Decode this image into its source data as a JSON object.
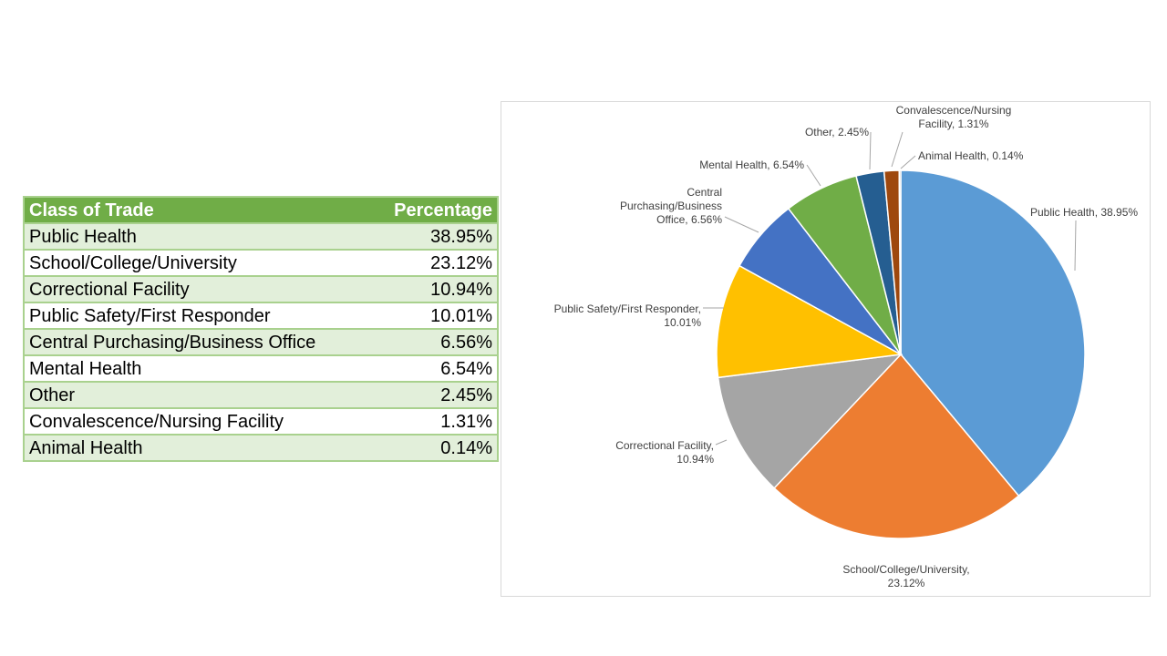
{
  "table": {
    "headers": [
      "Class of Trade",
      "Percentage"
    ],
    "rows": [
      [
        "Public Health",
        "38.95%"
      ],
      [
        "School/College/University",
        "23.12%"
      ],
      [
        "Correctional Facility",
        "10.94%"
      ],
      [
        "Public Safety/First Responder",
        "10.01%"
      ],
      [
        "Central Purchasing/Business Office",
        "6.56%"
      ],
      [
        "Mental Health",
        "6.54%"
      ],
      [
        "Other",
        "2.45%"
      ],
      [
        "Convalescence/Nursing Facility",
        "1.31%"
      ],
      [
        "Animal Health",
        "0.14%"
      ]
    ]
  },
  "chart_data": {
    "type": "pie",
    "title": "",
    "categories": [
      "Public Health",
      "School/College/University",
      "Correctional Facility",
      "Public Safety/First Responder",
      "Central Purchasing/Business Office",
      "Mental Health",
      "Other",
      "Convalescence/Nursing Facility",
      "Animal Health"
    ],
    "values": [
      38.95,
      23.12,
      10.94,
      10.01,
      6.56,
      6.54,
      2.45,
      1.31,
      0.14
    ],
    "colors": [
      "#5b9bd5",
      "#ed7d31",
      "#a5a5a5",
      "#ffc000",
      "#4472c4",
      "#70ad47",
      "#255e91",
      "#9e480e",
      "#a9a9a9"
    ],
    "data_labels": [
      [
        "Public Health, 38.95%"
      ],
      [
        "School/College/University,",
        "23.12%"
      ],
      [
        "Correctional Facility,",
        "10.94%"
      ],
      [
        "Public Safety/First Responder,",
        "10.01%"
      ],
      [
        "Central",
        "Purchasing/Business",
        "Office, 6.56%"
      ],
      [
        "Mental Health, 6.54%"
      ],
      [
        "Other, 2.45%"
      ],
      [
        "Convalescence/Nursing",
        "Facility, 1.31%"
      ],
      [
        "Animal Health, 0.14%"
      ]
    ],
    "legend": "none",
    "start_angle_deg": 0,
    "direction": "clockwise"
  }
}
